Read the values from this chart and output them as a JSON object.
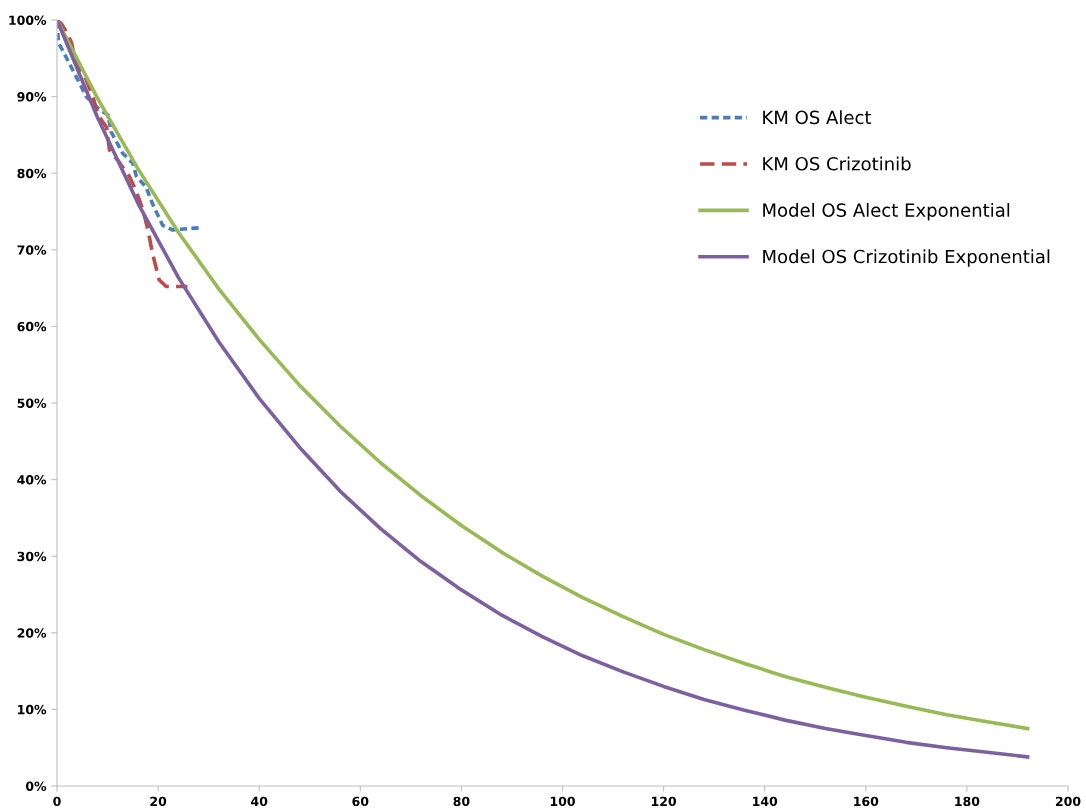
{
  "chart_data": {
    "type": "line",
    "xlim": [
      0,
      200
    ],
    "xticks": [
      0,
      20,
      40,
      60,
      80,
      100,
      120,
      140,
      160,
      180,
      200
    ],
    "ylim": [
      0,
      100
    ],
    "yticks": [
      {
        "value": 0,
        "label": "0%"
      },
      {
        "value": 10,
        "label": "10%"
      },
      {
        "value": 20,
        "label": "20%"
      },
      {
        "value": 30,
        "label": "30%"
      },
      {
        "value": 40,
        "label": "40%"
      },
      {
        "value": 50,
        "label": "50%"
      },
      {
        "value": 60,
        "label": "60%"
      },
      {
        "value": 70,
        "label": "70%"
      },
      {
        "value": 80,
        "label": "80%"
      },
      {
        "value": 90,
        "label": "90%"
      },
      {
        "value": 100,
        "label": "100%"
      }
    ],
    "grid": false,
    "legend": "right",
    "marker": "none",
    "series": [
      {
        "name": "KM OS Alect",
        "color": "#4a7ebb",
        "line_style": "dotted",
        "x": [
          0,
          0.3,
          0.9,
          4.5,
          5.8,
          8.4,
          10.1,
          10.7,
          13.0,
          15.0,
          15.7,
          17.6,
          18.9,
          20.9,
          22.8,
          28.7
        ],
        "values": [
          99.8,
          97.0,
          96.3,
          91.7,
          90.0,
          88.3,
          87.6,
          85.4,
          82.6,
          81.3,
          79.6,
          78.2,
          76.0,
          73.2,
          72.6,
          72.9
        ]
      },
      {
        "name": "KM OS Crizotinib",
        "color": "#be4b48",
        "line_style": "dashed",
        "x": [
          0,
          0.9,
          1.9,
          2.9,
          3.5,
          5.8,
          7.1,
          8.1,
          9.8,
          10.4,
          12.0,
          14.3,
          15.7,
          17.0,
          18.0,
          18.9,
          20.2,
          21.6,
          25.8
        ],
        "values": [
          100,
          99.5,
          98.4,
          97.0,
          95.0,
          92.2,
          90.0,
          87.6,
          86.0,
          83.0,
          81.7,
          79.6,
          77.6,
          75.2,
          72.6,
          69.5,
          66.1,
          65.2,
          65.2
        ]
      },
      {
        "name": "Model OS Alect Exponential",
        "color": "#98b954",
        "line_style": "solid",
        "x": [
          0,
          8,
          16,
          24,
          32,
          40,
          48,
          56,
          64,
          72,
          80,
          88,
          96,
          104,
          112,
          120,
          128,
          136,
          144,
          152,
          160,
          168,
          176,
          184,
          192
        ],
        "values": [
          100,
          89.8,
          80.6,
          72.3,
          64.9,
          58.3,
          52.3,
          47.0,
          42.2,
          37.9,
          34.0,
          30.5,
          27.4,
          24.6,
          22.1,
          19.8,
          17.8,
          16.0,
          14.3,
          12.9,
          11.6,
          10.4,
          9.3,
          8.4,
          7.5
        ]
      },
      {
        "name": "Model OS Crizotinib Exponential",
        "color": "#7d60a0",
        "line_style": "solid",
        "x": [
          0,
          8,
          16,
          24,
          32,
          40,
          48,
          56,
          64,
          72,
          80,
          88,
          96,
          104,
          112,
          120,
          128,
          136,
          144,
          152,
          160,
          168,
          176,
          184,
          192
        ],
        "values": [
          100,
          87.3,
          76.1,
          66.4,
          58.0,
          50.6,
          44.2,
          38.5,
          33.6,
          29.3,
          25.6,
          22.3,
          19.5,
          17.0,
          14.9,
          13.0,
          11.3,
          9.9,
          8.6,
          7.5,
          6.6,
          5.7,
          5.0,
          4.4,
          3.8
        ]
      }
    ]
  }
}
